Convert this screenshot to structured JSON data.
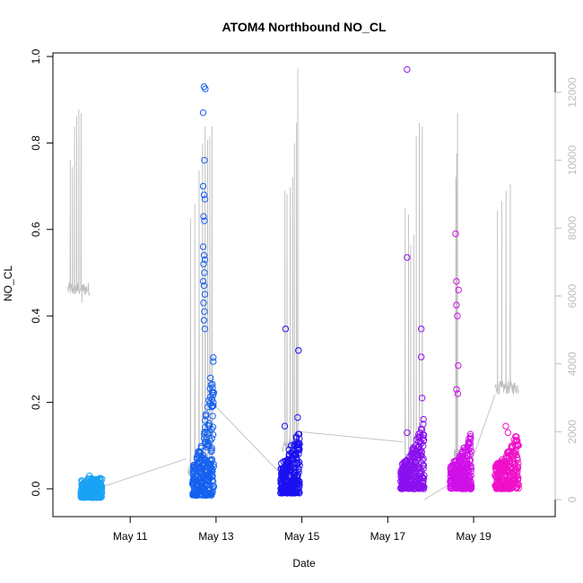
{
  "chart_data": {
    "type": "scatter",
    "title": "ATOM4 Northbound NO_CL",
    "xlabel": "Date",
    "ylabel": "NO_CL",
    "y2label": "",
    "x_ticks": [
      {
        "day": 11,
        "label": "May 11"
      },
      {
        "day": 13,
        "label": "May 13"
      },
      {
        "day": 15,
        "label": "May 15"
      },
      {
        "day": 17,
        "label": "May 17"
      },
      {
        "day": 19,
        "label": "May 19"
      }
    ],
    "xlim_days": [
      9.2,
      20.9
    ],
    "ylim": [
      -0.06,
      1.0
    ],
    "y_ticks": [
      0.0,
      0.2,
      0.4,
      0.6,
      0.8,
      1.0
    ],
    "y_tick_labels": [
      "0.0",
      "0.2",
      "0.4",
      "0.6",
      "0.8",
      "1.0"
    ],
    "y2lim": [
      -300,
      12500
    ],
    "y2_ticks": [
      0,
      2000,
      4000,
      6000,
      8000,
      10000,
      12000
    ],
    "y2_tick_labels": [
      "0",
      "2000",
      "4000",
      "6000",
      "8000",
      "10000",
      "12000"
    ],
    "grid": false,
    "legend": "none",
    "colors": {
      "right_axis": "#bebebe",
      "secondary_line": "#bebebe",
      "clusters": [
        "#1aa3f5",
        "#1560f0",
        "#1a10f0",
        "#8b10f0",
        "#d010e8",
        "#f010c8"
      ]
    },
    "series": [
      {
        "type": "scatter",
        "axis": "left",
        "clusters": [
          {
            "start": 9.85,
            "end": 10.35,
            "color": "#1aa3f5",
            "base_low": -0.02,
            "base_high": 0.025,
            "ramp_to": 0.025,
            "outliers": [
              [
                9.92,
                -0.015
              ],
              [
                10.05,
                0.03
              ],
              [
                10.2,
                -0.02
              ],
              [
                10.3,
                0.02
              ]
            ]
          },
          {
            "start": 12.45,
            "end": 12.95,
            "color": "#1560f0",
            "base_low": -0.015,
            "base_high": 0.06,
            "ramp_to": 0.34,
            "outliers": [
              [
                12.72,
                0.93
              ],
              [
                12.75,
                0.925
              ],
              [
                12.7,
                0.87
              ],
              [
                12.73,
                0.76
              ],
              [
                12.7,
                0.7
              ],
              [
                12.72,
                0.68
              ],
              [
                12.74,
                0.67
              ],
              [
                12.71,
                0.63
              ],
              [
                12.73,
                0.62
              ],
              [
                12.7,
                0.56
              ],
              [
                12.72,
                0.54
              ],
              [
                12.74,
                0.53
              ],
              [
                12.71,
                0.52
              ],
              [
                12.73,
                0.5
              ],
              [
                12.7,
                0.48
              ],
              [
                12.72,
                0.47
              ],
              [
                12.74,
                0.45
              ],
              [
                12.71,
                0.43
              ],
              [
                12.73,
                0.41
              ],
              [
                12.72,
                0.39
              ],
              [
                12.74,
                0.37
              ]
            ]
          },
          {
            "start": 14.5,
            "end": 14.95,
            "color": "#1a10f0",
            "base_low": -0.01,
            "base_high": 0.06,
            "ramp_to": 0.15,
            "outliers": [
              [
                14.62,
                0.37
              ],
              [
                14.92,
                0.32
              ],
              [
                14.6,
                0.145
              ],
              [
                14.7,
                0.09
              ],
              [
                14.75,
                0.1
              ],
              [
                14.9,
                0.165
              ]
            ]
          },
          {
            "start": 17.3,
            "end": 17.85,
            "color": "#8b10f0",
            "base_low": 0.0,
            "base_high": 0.06,
            "ramp_to": 0.17,
            "outliers": [
              [
                17.45,
                0.97
              ],
              [
                17.45,
                0.535
              ],
              [
                17.78,
                0.37
              ],
              [
                17.78,
                0.305
              ],
              [
                17.8,
                0.21
              ],
              [
                17.45,
                0.13
              ]
            ]
          },
          {
            "start": 18.45,
            "end": 18.95,
            "color": "#d010e8",
            "base_low": 0.0,
            "base_high": 0.06,
            "ramp_to": 0.14,
            "outliers": [
              [
                18.58,
                0.59
              ],
              [
                18.6,
                0.48
              ],
              [
                18.65,
                0.46
              ],
              [
                18.6,
                0.425
              ],
              [
                18.62,
                0.4
              ],
              [
                18.64,
                0.285
              ],
              [
                18.6,
                0.23
              ],
              [
                18.63,
                0.22
              ]
            ]
          },
          {
            "start": 19.5,
            "end": 20.05,
            "color": "#f010c8",
            "base_low": 0.0,
            "base_high": 0.06,
            "ramp_to": 0.14,
            "outliers": [
              [
                19.75,
                0.145
              ],
              [
                19.8,
                0.13
              ]
            ]
          }
        ]
      },
      {
        "type": "line",
        "axis": "right",
        "color": "#bebebe",
        "segments": [
          {
            "x_start": 9.55,
            "x_end": 10.05,
            "base": 6200,
            "spikes": [
              [
                9.6,
                10000
              ],
              [
                9.65,
                9800
              ],
              [
                9.7,
                11000
              ],
              [
                9.75,
                11300
              ],
              [
                9.8,
                11500
              ],
              [
                9.85,
                11400
              ],
              [
                9.87,
                5800
              ]
            ]
          },
          {
            "x_start": 12.35,
            "x_end": 12.95,
            "base": 900,
            "spikes": [
              [
                12.4,
                8300
              ],
              [
                12.5,
                8700
              ],
              [
                12.6,
                9700
              ],
              [
                12.68,
                10500
              ],
              [
                12.74,
                11000
              ],
              [
                12.8,
                10600
              ],
              [
                12.85,
                10700
              ],
              [
                12.9,
                11000
              ]
            ]
          },
          {
            "x_start": 14.55,
            "x_end": 14.95,
            "base": 1600,
            "spikes": [
              [
                14.6,
                9100
              ],
              [
                14.65,
                9000
              ],
              [
                14.72,
                9200
              ],
              [
                14.78,
                9500
              ],
              [
                14.82,
                10500
              ],
              [
                14.87,
                11100
              ],
              [
                14.9,
                12700
              ]
            ]
          },
          {
            "x_start": 17.35,
            "x_end": 17.85,
            "base": 800,
            "spikes": [
              [
                17.4,
                8600
              ],
              [
                17.48,
                8400
              ],
              [
                17.53,
                7500
              ],
              [
                17.6,
                7800
              ],
              [
                17.66,
                10700
              ],
              [
                17.73,
                11100
              ],
              [
                17.8,
                11000
              ]
            ]
          },
          {
            "x_start": 18.55,
            "x_end": 18.65,
            "base": 1300,
            "spikes": [
              [
                18.58,
                9500
              ],
              [
                18.6,
                10200
              ],
              [
                18.62,
                11400
              ]
            ]
          },
          {
            "x_start": 19.5,
            "x_end": 20.05,
            "base": 3300,
            "spikes": [
              [
                19.55,
                8500
              ],
              [
                19.65,
                8800
              ],
              [
                19.75,
                9100
              ],
              [
                19.85,
                9300
              ]
            ]
          }
        ],
        "connectors": [
          [
            [
              10.05,
              250
            ],
            [
              12.3,
              1200
            ]
          ],
          [
            [
              12.95,
              2800
            ],
            [
              14.55,
              700
            ]
          ],
          [
            [
              14.95,
              2000
            ],
            [
              17.35,
              1700
            ]
          ],
          [
            [
              17.85,
              0
            ],
            [
              18.5,
              500
            ]
          ],
          [
            [
              18.7,
              200
            ],
            [
              19.5,
              3100
            ]
          ]
        ]
      }
    ]
  }
}
